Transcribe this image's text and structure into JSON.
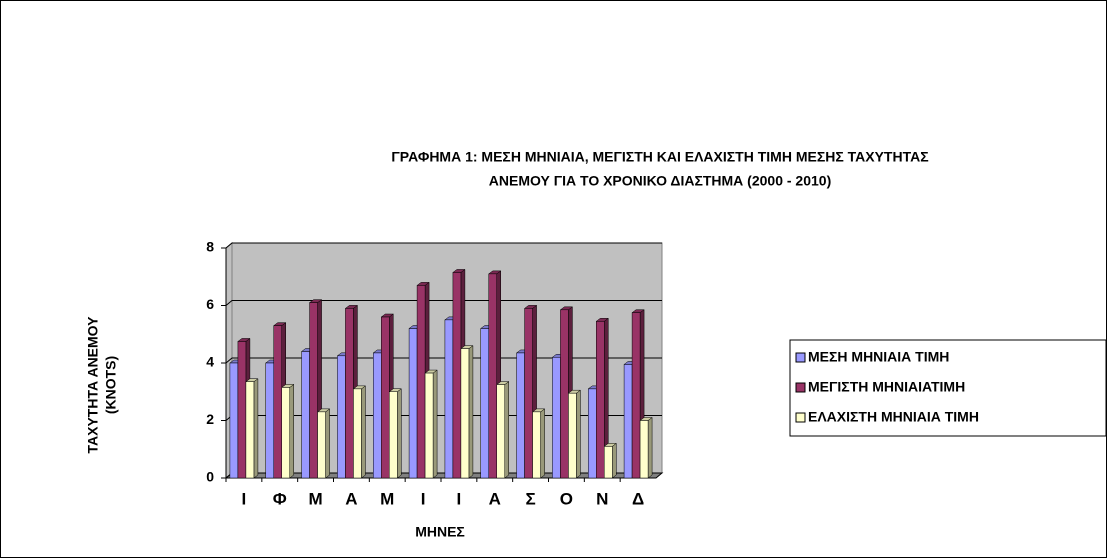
{
  "chart_data": {
    "type": "bar3d",
    "title": [
      "ΓΡΑΦΗΜΑ 1: ΜΕΣΗ ΜΗΝΙΑΙΑ, ΜΕΓΙΣΤΗ ΚΑΙ ΕΛΑΧΙΣΤΗ ΤΙΜΗ ΜΕΣΗΣ ΤΑΧΥΤΗΤΑΣ",
      "ΑΝΕΜΟΥ ΓΙΑ ΤΟ ΧΡΟΝΙΚΟ ΔΙΑΣΤΗΜΑ (2000 - 2010)"
    ],
    "y_label": [
      "ΤΑΧΥΤΗΤΑ ΑΝΕΜΟΥ",
      "(KNOTS)"
    ],
    "x_label": "ΜΗΝΕΣ",
    "categories": [
      "Ι",
      "Φ",
      "Μ",
      "Α",
      "Μ",
      "Ι",
      "Ι",
      "Α",
      "Σ",
      "Ο",
      "Ν",
      "Δ"
    ],
    "series": [
      {
        "name": "ΜΕΣΗ ΜΗΝΙΑΙΑ ΤΙΜΗ",
        "color": "#9999ff",
        "values": [
          4.0,
          4.0,
          4.4,
          4.25,
          4.35,
          5.2,
          5.5,
          5.2,
          4.35,
          4.2,
          3.1,
          3.95
        ]
      },
      {
        "name": "ΜΕΓΙΣΤΗ ΜΗΝΙΑΙΑΤΙΜΗ",
        "color": "#993366",
        "values": [
          4.75,
          5.3,
          6.1,
          5.9,
          5.6,
          6.7,
          7.15,
          7.1,
          5.9,
          5.85,
          5.45,
          5.75
        ]
      },
      {
        "name": "ΕΛΑΧΙΣΤΗ ΜΗΝΙΑΙΑ ΤΙΜΗ",
        "color": "#ffffcc",
        "values": [
          3.35,
          3.15,
          2.3,
          3.1,
          3.0,
          3.65,
          4.5,
          3.25,
          2.3,
          2.95,
          1.1,
          2.0
        ]
      }
    ],
    "ylim": [
      0,
      8
    ],
    "yticks": [
      0,
      2,
      4,
      6,
      8
    ],
    "grid": true,
    "wall_color": "#c0c0c0",
    "legend": "right"
  }
}
